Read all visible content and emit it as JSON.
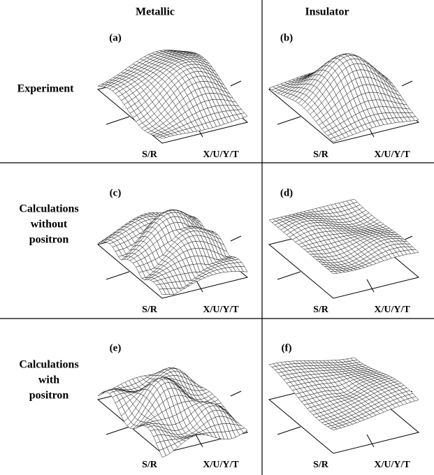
{
  "columns": [
    "Metallic",
    "Insulator"
  ],
  "rows": [
    [
      "Experiment"
    ],
    [
      "Calculations",
      "without",
      "positron"
    ],
    [
      "Calculations",
      "with",
      "positron"
    ]
  ],
  "panels": [
    {
      "label": "(a)",
      "x_label": "X/U/Y/T",
      "y_label": "S/R"
    },
    {
      "label": "(b)",
      "x_label": "X/U/Y/T",
      "y_label": "S/R"
    },
    {
      "label": "(c)",
      "x_label": "X/U/Y/T",
      "y_label": "S/R"
    },
    {
      "label": "(d)",
      "x_label": "X/U/Y/T",
      "y_label": "S/R"
    },
    {
      "label": "(e)",
      "x_label": "X/U/Y/T",
      "y_label": "S/R"
    },
    {
      "label": "(f)",
      "x_label": "X/U/Y/T",
      "y_label": "S/R"
    }
  ]
}
